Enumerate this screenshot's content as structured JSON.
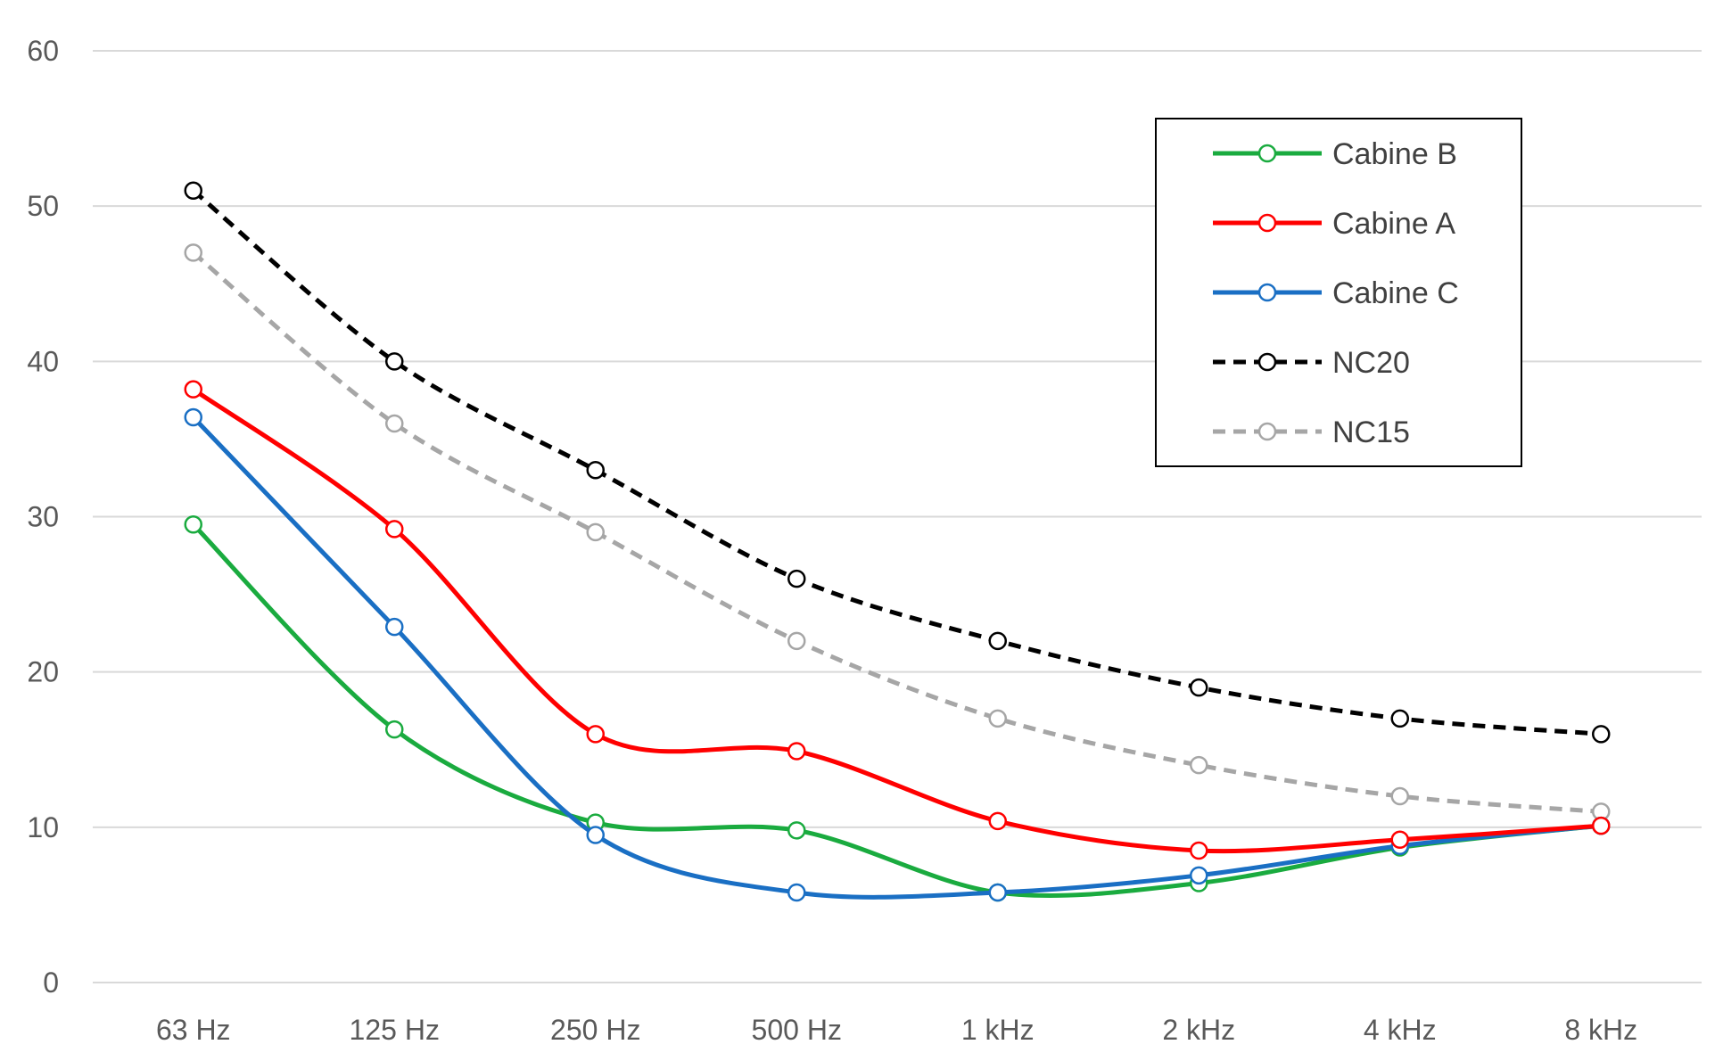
{
  "chart_data": {
    "type": "line",
    "title": "",
    "xlabel": "",
    "ylabel": "",
    "categories": [
      "63 Hz",
      "125 Hz",
      "250 Hz",
      "500 Hz",
      "1 kHz",
      "2 kHz",
      "4 kHz",
      "8 kHz"
    ],
    "ylim": [
      0,
      60
    ],
    "yticks": [
      0,
      10,
      20,
      30,
      40,
      50,
      60
    ],
    "ytick_labels": [
      "0",
      "10",
      "20",
      "30",
      "40",
      "50",
      "60"
    ],
    "grid": true,
    "legend_position": "top-right",
    "series": [
      {
        "name": "Cabine B",
        "color": "#1aab3f",
        "dashed": false,
        "values": [
          29.5,
          16.3,
          10.3,
          9.8,
          5.8,
          6.4,
          8.7,
          10.1
        ]
      },
      {
        "name": "Cabine A",
        "color": "#ff0000",
        "dashed": false,
        "values": [
          38.2,
          29.2,
          16.0,
          14.9,
          10.4,
          8.5,
          9.2,
          10.1
        ]
      },
      {
        "name": "Cabine C",
        "color": "#1a6fc4",
        "dashed": false,
        "values": [
          36.4,
          22.9,
          9.5,
          5.8,
          5.8,
          6.9,
          8.8,
          10.1
        ]
      },
      {
        "name": "NC20",
        "color": "#000000",
        "dashed": true,
        "values": [
          51,
          40,
          33,
          26,
          22,
          19,
          17,
          16
        ]
      },
      {
        "name": "NC15",
        "color": "#a6a6a6",
        "dashed": true,
        "values": [
          47,
          36,
          29,
          22,
          17,
          14,
          12,
          11
        ]
      }
    ]
  }
}
